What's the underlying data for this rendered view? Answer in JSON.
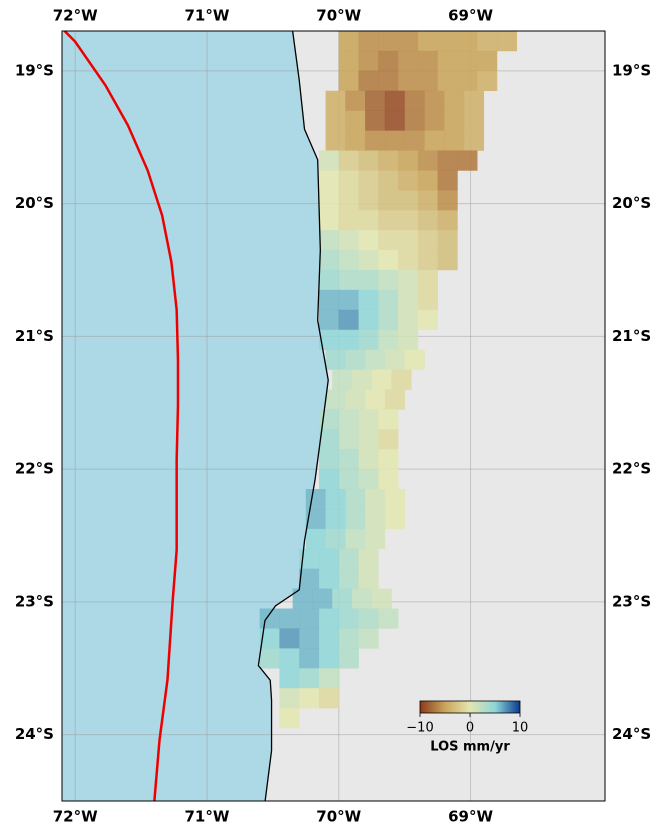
{
  "chart_data": {
    "type": "map",
    "xlim": [
      -72.1,
      -67.98
    ],
    "ylim": [
      -24.5,
      -18.7
    ],
    "xticks": [
      {
        "value": -72,
        "label": "72°W"
      },
      {
        "value": -71,
        "label": "71°W"
      },
      {
        "value": -70,
        "label": "70°W"
      },
      {
        "value": -69,
        "label": "69°W"
      }
    ],
    "yticks": [
      {
        "value": -19,
        "label": "19°S"
      },
      {
        "value": -20,
        "label": "20°S"
      },
      {
        "value": -21,
        "label": "21°S"
      },
      {
        "value": -22,
        "label": "22°S"
      },
      {
        "value": -23,
        "label": "23°S"
      },
      {
        "value": -24,
        "label": "24°S"
      }
    ],
    "grid": true,
    "ocean_color": "#add8e6",
    "land_color": "#e8e8e8",
    "coastline": {
      "lon": [
        -70.35,
        -70.3,
        -70.26,
        -70.16,
        -70.14,
        -70.16,
        -70.08,
        -70.13,
        -70.18,
        -70.26,
        -70.3,
        -70.48,
        -70.56,
        -70.61,
        -70.52,
        -70.51,
        -70.51,
        -70.56
      ],
      "lat": [
        -18.7,
        -19.07,
        -19.44,
        -19.67,
        -20.35,
        -20.88,
        -21.33,
        -21.71,
        -22.08,
        -22.54,
        -22.91,
        -23.03,
        -23.14,
        -23.48,
        -23.59,
        -23.74,
        -24.12,
        -24.51
      ]
    },
    "trench": {
      "color": "#ee0000",
      "lon": [
        -72.08,
        -72.0,
        -71.77,
        -71.6,
        -71.45,
        -71.34,
        -71.27,
        -71.23,
        -71.22,
        -71.22,
        -71.23,
        -71.23,
        -71.26,
        -71.3,
        -71.36,
        -71.4
      ],
      "lat": [
        -18.7,
        -18.78,
        -19.11,
        -19.41,
        -19.75,
        -20.09,
        -20.44,
        -20.8,
        -21.18,
        -21.52,
        -21.93,
        -22.61,
        -22.99,
        -23.59,
        -24.04,
        -24.51
      ]
    },
    "insar": {
      "cell_size": 0.15,
      "rows": [
        {
          "lat": -18.7,
          "lon0": -70.0,
          "values": [
            -5,
            -6,
            -6,
            -6,
            -5,
            -5,
            -5,
            -4,
            -4
          ]
        },
        {
          "lat": -18.85,
          "lon0": -70.0,
          "values": [
            -5,
            -6,
            -7,
            -6,
            -6,
            -5,
            -5,
            -5
          ]
        },
        {
          "lat": -19.0,
          "lon0": -70.0,
          "values": [
            -5,
            -7,
            -7,
            -6,
            -6,
            -5,
            -5,
            -4
          ]
        },
        {
          "lat": -19.15,
          "lon0": -70.1,
          "values": [
            -4,
            -6,
            -8,
            -9,
            -7,
            -6,
            -5,
            -4
          ]
        },
        {
          "lat": -19.3,
          "lon0": -70.1,
          "values": [
            -4,
            -5,
            -8,
            -9,
            -7,
            -6,
            -5,
            -4
          ]
        },
        {
          "lat": -19.45,
          "lon0": -70.1,
          "values": [
            -4,
            -5,
            -6,
            -6,
            -6,
            -5,
            -5,
            -4
          ]
        },
        {
          "lat": -19.6,
          "lon0": -70.15,
          "values": [
            1,
            -2,
            -3,
            -4,
            -5,
            -6,
            -7,
            -7
          ]
        },
        {
          "lat": -19.75,
          "lon0": -70.15,
          "values": [
            0,
            -1,
            -2,
            -3,
            -4,
            -5,
            -7
          ]
        },
        {
          "lat": -19.9,
          "lon0": -70.15,
          "values": [
            0,
            -1,
            -2,
            -3,
            -3,
            -4,
            -6
          ]
        },
        {
          "lat": -20.05,
          "lon0": -70.15,
          "values": [
            0,
            -1,
            -1,
            -2,
            -2,
            -3,
            -4
          ]
        },
        {
          "lat": -20.2,
          "lon0": -70.15,
          "values": [
            2,
            1,
            0,
            -1,
            -1,
            -2,
            -3
          ]
        },
        {
          "lat": -20.35,
          "lon0": -70.15,
          "values": [
            3,
            2,
            1,
            0,
            -1,
            -2,
            -3
          ]
        },
        {
          "lat": -20.5,
          "lon0": -70.15,
          "values": [
            4,
            3,
            3,
            2,
            1,
            -1
          ]
        },
        {
          "lat": -20.65,
          "lon0": -70.15,
          "values": [
            6,
            6,
            5,
            3,
            1,
            -1
          ]
        },
        {
          "lat": -20.8,
          "lon0": -70.15,
          "values": [
            6,
            7,
            5,
            3,
            1,
            0
          ]
        },
        {
          "lat": -20.95,
          "lon0": -70.15,
          "values": [
            5,
            5,
            4,
            2,
            1
          ]
        },
        {
          "lat": -21.1,
          "lon0": -70.1,
          "values": [
            4,
            3,
            2,
            1,
            0
          ]
        },
        {
          "lat": -21.25,
          "lon0": -70.05,
          "values": [
            2,
            1,
            0,
            -1
          ]
        },
        {
          "lat": -21.4,
          "lon0": -70.1,
          "values": [
            2,
            1,
            0,
            -1
          ]
        },
        {
          "lat": -21.55,
          "lon0": -70.15,
          "values": [
            3,
            2,
            1,
            0
          ]
        },
        {
          "lat": -21.7,
          "lon0": -70.15,
          "values": [
            4,
            2,
            1,
            -1
          ]
        },
        {
          "lat": -21.85,
          "lon0": -70.15,
          "values": [
            4,
            3,
            1,
            0
          ]
        },
        {
          "lat": -22.0,
          "lon0": -70.15,
          "values": [
            5,
            3,
            2,
            0
          ]
        },
        {
          "lat": -22.15,
          "lon0": -70.25,
          "values": [
            6,
            5,
            3,
            1,
            0
          ]
        },
        {
          "lat": -22.3,
          "lon0": -70.25,
          "values": [
            6,
            5,
            3,
            1,
            0
          ]
        },
        {
          "lat": -22.45,
          "lon0": -70.25,
          "values": [
            5,
            4,
            2,
            1
          ]
        },
        {
          "lat": -22.6,
          "lon0": -70.3,
          "values": [
            5,
            5,
            3,
            1
          ]
        },
        {
          "lat": -22.75,
          "lon0": -70.3,
          "values": [
            6,
            5,
            3,
            1
          ]
        },
        {
          "lat": -22.9,
          "lon0": -70.35,
          "values": [
            6,
            6,
            4,
            2,
            1
          ]
        },
        {
          "lat": -23.05,
          "lon0": -70.6,
          "values": [
            6,
            6,
            6,
            5,
            4,
            3,
            2
          ]
        },
        {
          "lat": -23.2,
          "lon0": -70.6,
          "values": [
            5,
            7,
            6,
            5,
            3,
            2
          ]
        },
        {
          "lat": -23.35,
          "lon0": -70.6,
          "values": [
            4,
            5,
            6,
            5,
            3
          ]
        },
        {
          "lat": -23.5,
          "lon0": -70.45,
          "values": [
            5,
            4,
            2
          ]
        },
        {
          "lat": -23.65,
          "lon0": -70.45,
          "values": [
            1,
            0,
            -1
          ]
        },
        {
          "lat": -23.8,
          "lon0": -70.45,
          "values": [
            0
          ]
        }
      ]
    },
    "colormap": {
      "values": [
        -10,
        -5,
        0,
        5,
        10
      ],
      "colors": [
        "#8b3a1a",
        "#c9a55a",
        "#e3e6b0",
        "#8fd6d8",
        "#0a3a8f"
      ]
    },
    "colorbar": {
      "label": "LOS mm/yr",
      "clim": [
        -10,
        10
      ],
      "ticks": [
        {
          "value": -10,
          "label": "−10"
        },
        0,
        10
      ]
    }
  }
}
